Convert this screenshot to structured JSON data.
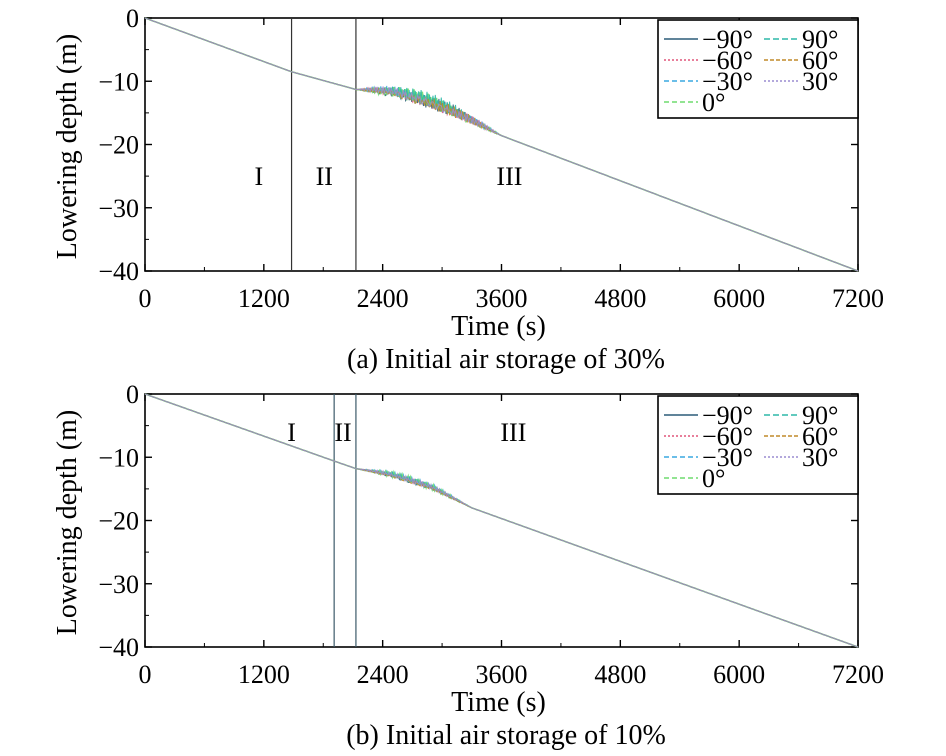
{
  "chart_data": [
    {
      "type": "line",
      "caption": "(a) Initial air storage of 30%",
      "xlabel": "Time (s)",
      "ylabel": "Lowering depth (m)",
      "xlim": [
        0,
        7200
      ],
      "ylim": [
        -40,
        0
      ],
      "xticks": [
        "0",
        "1200",
        "2400",
        "3600",
        "4800",
        "6000",
        "7200"
      ],
      "yticks": [
        "0",
        "−10",
        "−20",
        "−30",
        "−40"
      ],
      "grid": false,
      "legend_position": "top-right",
      "boundaries": [
        1480,
        2130
      ],
      "regions": [
        {
          "label": "I",
          "x": 1150,
          "y": -25
        },
        {
          "label": "II",
          "x": 1810,
          "y": -25
        },
        {
          "label": "III",
          "x": 3680,
          "y": -25
        }
      ],
      "series": [
        {
          "name": "−90°",
          "color": "#2c5c78",
          "x": [
            0,
            1480,
            2130,
            2500,
            2800,
            3100,
            3600,
            7200
          ],
          "y": [
            0,
            -8.5,
            -11.3,
            -12.5,
            -14.0,
            -15.5,
            -18.6,
            -40
          ]
        },
        {
          "name": "−60°",
          "color": "#e0557a",
          "x": [
            0,
            1480,
            2130,
            2500,
            2800,
            3100,
            3600,
            7200
          ],
          "y": [
            0,
            -8.5,
            -11.3,
            -12.3,
            -13.8,
            -15.6,
            -18.6,
            -40
          ]
        },
        {
          "name": "−30°",
          "color": "#3aa8e0",
          "x": [
            0,
            1480,
            2130,
            2500,
            2800,
            3100,
            3600,
            7200
          ],
          "y": [
            0,
            -8.5,
            -11.3,
            -12.2,
            -13.6,
            -15.4,
            -18.6,
            -40
          ]
        },
        {
          "name": "0°",
          "color": "#6fdc6f",
          "x": [
            0,
            1480,
            2130,
            2500,
            2800,
            3100,
            3600,
            7200
          ],
          "y": [
            0,
            -8.5,
            -11.3,
            -12.4,
            -13.7,
            -15.5,
            -18.6,
            -40
          ]
        },
        {
          "name": "90°",
          "color": "#2fb9a8",
          "x": [
            0,
            1480,
            2130,
            2500,
            2800,
            3100,
            3600,
            7200
          ],
          "y": [
            0,
            -8.5,
            -11.3,
            -12.1,
            -13.5,
            -15.3,
            -18.6,
            -40
          ]
        },
        {
          "name": "60°",
          "color": "#c08a2a",
          "x": [
            0,
            1480,
            2130,
            2500,
            2800,
            3100,
            3600,
            7200
          ],
          "y": [
            0,
            -8.5,
            -11.3,
            -12.3,
            -13.9,
            -15.6,
            -18.6,
            -40
          ]
        },
        {
          "name": "30°",
          "color": "#9a8cd0",
          "x": [
            0,
            1480,
            2130,
            2500,
            2800,
            3100,
            3600,
            7200
          ],
          "y": [
            0,
            -8.5,
            -11.3,
            -12.2,
            -13.7,
            -15.5,
            -18.6,
            -40
          ]
        }
      ]
    },
    {
      "type": "line",
      "caption": "(b) Initial air storage of 10%",
      "xlabel": "Time (s)",
      "ylabel": "Lowering depth (m)",
      "xlim": [
        0,
        7200
      ],
      "ylim": [
        -40,
        0
      ],
      "xticks": [
        "0",
        "1200",
        "2400",
        "3600",
        "4800",
        "6000",
        "7200"
      ],
      "yticks": [
        "0",
        "−10",
        "−20",
        "−30",
        "−40"
      ],
      "grid": false,
      "legend_position": "top-right",
      "boundaries": [
        1910,
        2130
      ],
      "regions": [
        {
          "label": "I",
          "x": 1480,
          "y": -6
        },
        {
          "label": "II",
          "x": 2000,
          "y": -6
        },
        {
          "label": "III",
          "x": 3720,
          "y": -6
        }
      ],
      "series": [
        {
          "name": "−90°",
          "color": "#2c5c78",
          "x": [
            0,
            1910,
            2130,
            2500,
            2900,
            3300,
            7200
          ],
          "y": [
            0,
            -10.6,
            -11.8,
            -13.2,
            -15.2,
            -18.0,
            -40
          ]
        },
        {
          "name": "−60°",
          "color": "#e0557a",
          "x": [
            0,
            1910,
            2130,
            2500,
            2900,
            3300,
            7200
          ],
          "y": [
            0,
            -10.6,
            -11.8,
            -13.1,
            -15.1,
            -18.0,
            -40
          ]
        },
        {
          "name": "−30°",
          "color": "#3aa8e0",
          "x": [
            0,
            1910,
            2130,
            2500,
            2900,
            3300,
            7200
          ],
          "y": [
            0,
            -10.6,
            -11.8,
            -13.0,
            -15.0,
            -18.0,
            -40
          ]
        },
        {
          "name": "0°",
          "color": "#6fdc6f",
          "x": [
            0,
            1910,
            2130,
            2500,
            2900,
            3300,
            7200
          ],
          "y": [
            0,
            -10.6,
            -11.8,
            -13.1,
            -15.1,
            -18.0,
            -40
          ]
        },
        {
          "name": "90°",
          "color": "#2fb9a8",
          "x": [
            0,
            1910,
            2130,
            2500,
            2900,
            3300,
            7200
          ],
          "y": [
            0,
            -10.6,
            -11.8,
            -13.0,
            -15.0,
            -18.0,
            -40
          ]
        },
        {
          "name": "60°",
          "color": "#c08a2a",
          "x": [
            0,
            1910,
            2130,
            2500,
            2900,
            3300,
            7200
          ],
          "y": [
            0,
            -10.6,
            -11.8,
            -13.2,
            -15.2,
            -18.0,
            -40
          ]
        },
        {
          "name": "30°",
          "color": "#9a8cd0",
          "x": [
            0,
            1910,
            2130,
            2500,
            2900,
            3300,
            7200
          ],
          "y": [
            0,
            -10.6,
            -11.8,
            -13.1,
            -15.1,
            -18.0,
            -40
          ]
        }
      ]
    }
  ]
}
